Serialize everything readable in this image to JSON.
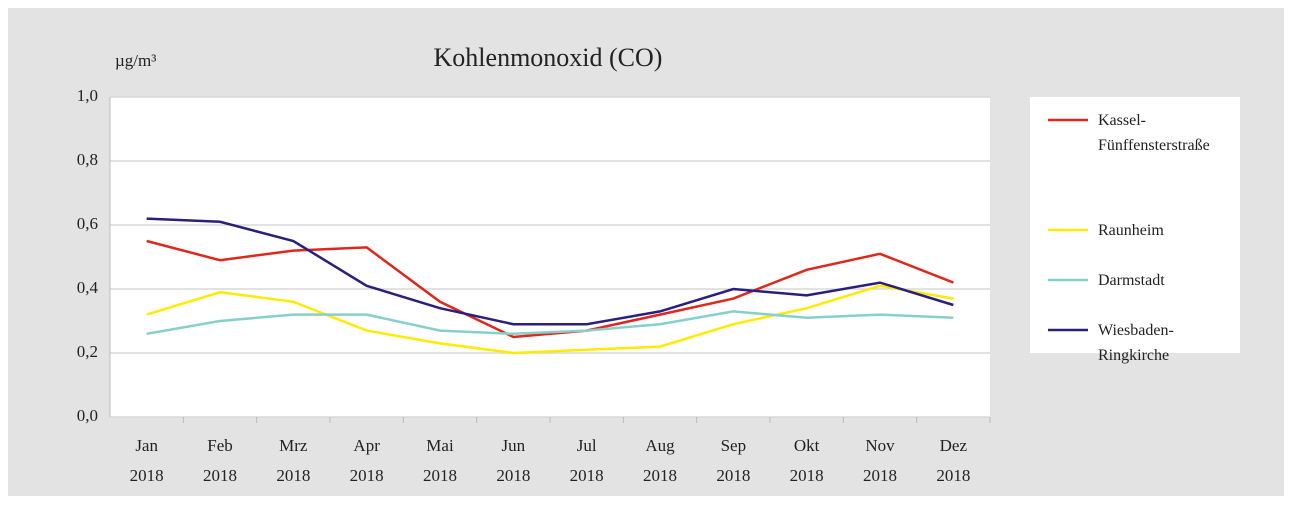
{
  "chart_data": {
    "type": "line",
    "title": "Kohlenmonoxid (CO)",
    "unit": "µg/m³",
    "categories": [
      "Jan 2018",
      "Feb 2018",
      "Mrz 2018",
      "Apr 2018",
      "Mai 2018",
      "Jun 2018",
      "Jul 2018",
      "Aug 2018",
      "Sep 2018",
      "Okt 2018",
      "Nov 2018",
      "Dez 2018"
    ],
    "ylim": [
      0,
      1
    ],
    "yticks": [
      {
        "value": 0,
        "label": "0,0"
      },
      {
        "value": 0.2,
        "label": "0,2"
      },
      {
        "value": 0.4,
        "label": "0,4"
      },
      {
        "value": 0.6,
        "label": "0,6"
      },
      {
        "value": 0.8,
        "label": "0,8"
      },
      {
        "value": 1,
        "label": "1,0"
      }
    ],
    "grid": true,
    "legend": "right",
    "series": [
      {
        "name": "Kassel-Fünffensterstraße",
        "color": "#e0271c",
        "values": [
          0.55,
          0.49,
          0.52,
          0.53,
          0.36,
          0.25,
          0.27,
          0.32,
          0.37,
          0.46,
          0.51,
          0.42
        ]
      },
      {
        "name": "Raunheim",
        "color": "#ffeb00",
        "values": [
          0.32,
          0.39,
          0.36,
          0.27,
          0.23,
          0.2,
          0.21,
          0.22,
          0.29,
          0.34,
          0.41,
          0.37
        ]
      },
      {
        "name": "Darmstadt",
        "color": "#86cfcb",
        "values": [
          0.26,
          0.3,
          0.32,
          0.32,
          0.27,
          0.26,
          0.27,
          0.29,
          0.33,
          0.31,
          0.32,
          0.31
        ]
      },
      {
        "name": "Wiesbaden-Ringkirche",
        "color": "#2a1f7e",
        "values": [
          0.62,
          0.61,
          0.55,
          0.41,
          0.34,
          0.29,
          0.29,
          0.33,
          0.4,
          0.38,
          0.42,
          0.35
        ]
      }
    ]
  }
}
